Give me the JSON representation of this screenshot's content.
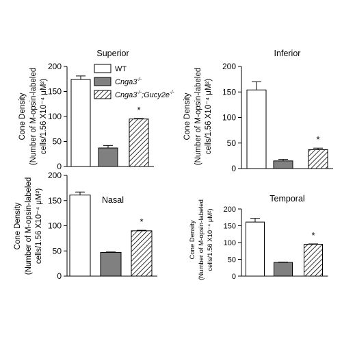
{
  "chart_data": [
    {
      "type": "bar",
      "title": "Superior",
      "ylabel_lines": [
        "Cone Density",
        "(Number of M-opsin-labeled",
        "cells/1.56 X10⁻⁴ μM²)"
      ],
      "ylim": [
        0,
        200
      ],
      "yticks": [
        0,
        50,
        100,
        150,
        200
      ],
      "categories": [
        "WT",
        "Cnga3-/-",
        "Cnga3-/-;Gucy2e-/-"
      ],
      "values": [
        174,
        37,
        95
      ],
      "errors": [
        7,
        5,
        1
      ],
      "annotations": [
        "",
        "",
        "*"
      ],
      "legend": {
        "placement": "right",
        "entries": [
          {
            "label": "WT",
            "style": "white"
          },
          {
            "label": "Cnga3",
            "sup": "-/-",
            "style": "gray"
          },
          {
            "label": "Cnga3",
            "sup": "-/-",
            "label2": ";Gucy2e",
            "sup2": "-/-",
            "style": "hatched"
          }
        ]
      }
    },
    {
      "type": "bar",
      "title": "Inferior",
      "ylabel_lines": [
        "Cone Density",
        "(Number of M-opsin-labeled",
        "cells/1.56 X10⁻⁴ μM²)"
      ],
      "ylim": [
        0,
        200
      ],
      "yticks": [
        0,
        50,
        100,
        150,
        200
      ],
      "categories": [
        "WT",
        "Cnga3-/-",
        "Cnga3-/-;Gucy2e-/-"
      ],
      "values": [
        154,
        15,
        37
      ],
      "errors": [
        16,
        3,
        3
      ],
      "annotations": [
        "",
        "",
        "*"
      ]
    },
    {
      "type": "bar",
      "title": "Nasal",
      "ylabel_lines": [
        "Cone Density",
        "(Number of M-opsin-labeled",
        "cells/1.56 X10⁻⁴ μM²)"
      ],
      "ylim": [
        0,
        200
      ],
      "yticks": [
        0,
        50,
        100,
        150,
        200
      ],
      "categories": [
        "WT",
        "Cnga3-/-",
        "Cnga3-/-;Gucy2e-/-"
      ],
      "values": [
        161,
        47,
        90
      ],
      "errors": [
        6,
        1,
        1
      ],
      "annotations": [
        "",
        "",
        "*"
      ]
    },
    {
      "type": "bar",
      "title": "Temporal",
      "ylabel_lines": [
        "Cone Density",
        "(Number of M-opsin-labeled",
        "cells/1.56 X10⁻⁴ μM²)"
      ],
      "ylim": [
        0,
        200
      ],
      "yticks": [
        0,
        50,
        100,
        150,
        200
      ],
      "categories": [
        "WT",
        "Cnga3-/-",
        "Cnga3-/-;Gucy2e-/-"
      ],
      "values": [
        161,
        41,
        95
      ],
      "errors": [
        11,
        1,
        1
      ],
      "annotations": [
        "",
        "",
        "*"
      ]
    }
  ],
  "colors": {
    "wt": "#ffffff",
    "cnga3": "#808080",
    "hatch": "#000000",
    "axis": "#000000"
  }
}
